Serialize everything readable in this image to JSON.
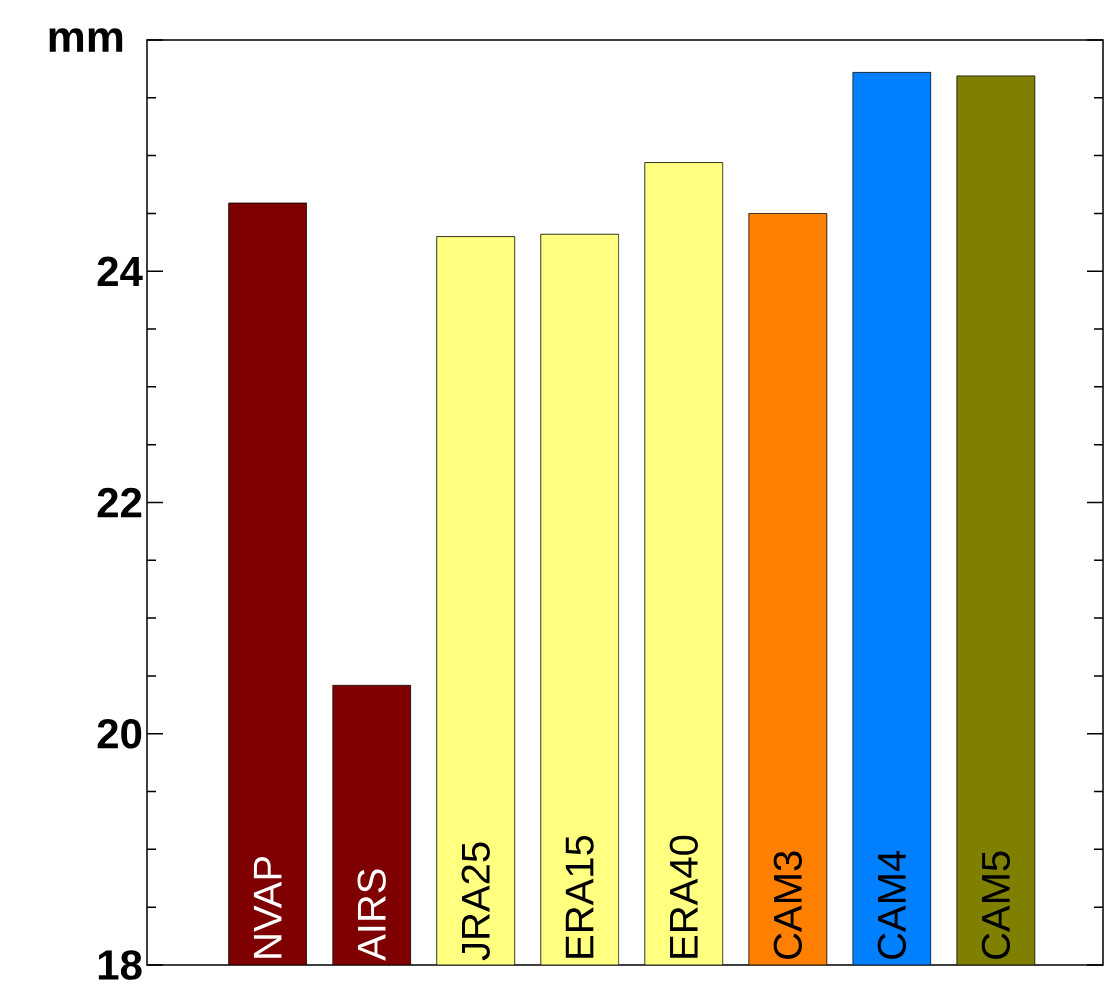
{
  "chart_data": {
    "type": "bar",
    "ylabel": "mm",
    "categories": [
      "NVAP",
      "AIRS",
      "JRA25",
      "ERA15",
      "ERA40",
      "CAM3",
      "CAM4",
      "CAM5"
    ],
    "values": [
      24.59,
      20.42,
      24.3,
      24.32,
      24.94,
      24.5,
      25.72,
      25.69
    ],
    "colors": [
      "#7f0000",
      "#7f0000",
      "#ffff80",
      "#ffff80",
      "#ffff80",
      "#ff8000",
      "#0080ff",
      "#808000"
    ],
    "ylim": [
      18,
      26
    ],
    "yticks": [
      18,
      20,
      22,
      24,
      {
        "value": 26,
        "label": null
      }
    ],
    "grid": false
  }
}
